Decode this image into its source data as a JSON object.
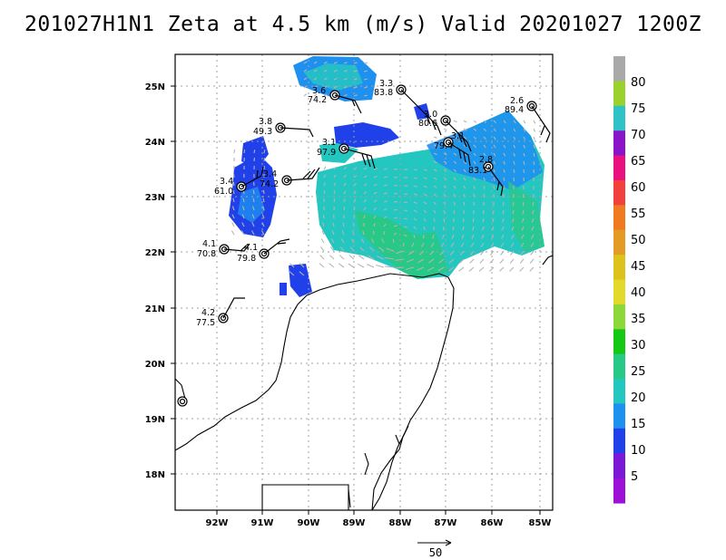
{
  "title": "201027H1N1 Zeta at 4.5 km (m/s) Valid 20201027 1200Z",
  "lat_labels": [
    "25N",
    "24N",
    "23N",
    "22N",
    "21N",
    "20N",
    "19N",
    "18N"
  ],
  "lon_labels": [
    "92W",
    "91W",
    "90W",
    "89W",
    "88W",
    "87W",
    "86W",
    "85W"
  ],
  "colorbar": {
    "labels": [
      "80",
      "75",
      "70",
      "65",
      "60",
      "55",
      "50",
      "45",
      "40",
      "35",
      "30",
      "25",
      "20",
      "15",
      "10",
      "5"
    ],
    "colors": [
      "#a9a9a9",
      "#9bd12c",
      "#2fc3c7",
      "#8a14c8",
      "#e8117f",
      "#f2413c",
      "#ef7a22",
      "#e39b26",
      "#dcc21b",
      "#e2d92a",
      "#8cd83a",
      "#14c814",
      "#28c887",
      "#24c7c0",
      "#1e90f0",
      "#2040ea",
      "#7a18d6",
      "#9c10d8"
    ]
  },
  "scale_arrow": {
    "label": "50"
  },
  "stations": [
    {
      "speed": "3.6",
      "dir": "74.2"
    },
    {
      "speed": "3.3",
      "dir": "83.8"
    },
    {
      "speed": "2.6",
      "dir": "89.4"
    },
    {
      "speed": "3.8",
      "dir": "49.3"
    },
    {
      "speed": "3.0",
      "dir": "80.6"
    },
    {
      "speed": "3.1",
      "dir": "79.4"
    },
    {
      "speed": "3.1",
      "dir": "97.9"
    },
    {
      "speed": "2.8",
      "dir": "83.1"
    },
    {
      "speed": "3.4",
      "dir": "74.2"
    },
    {
      "speed": "3.4",
      "dir": "61.0"
    },
    {
      "speed": "4.1",
      "dir": "70.8"
    },
    {
      "speed": "4.1",
      "dir": "79.8"
    },
    {
      "speed": "4.2",
      "dir": "77.5"
    }
  ]
}
